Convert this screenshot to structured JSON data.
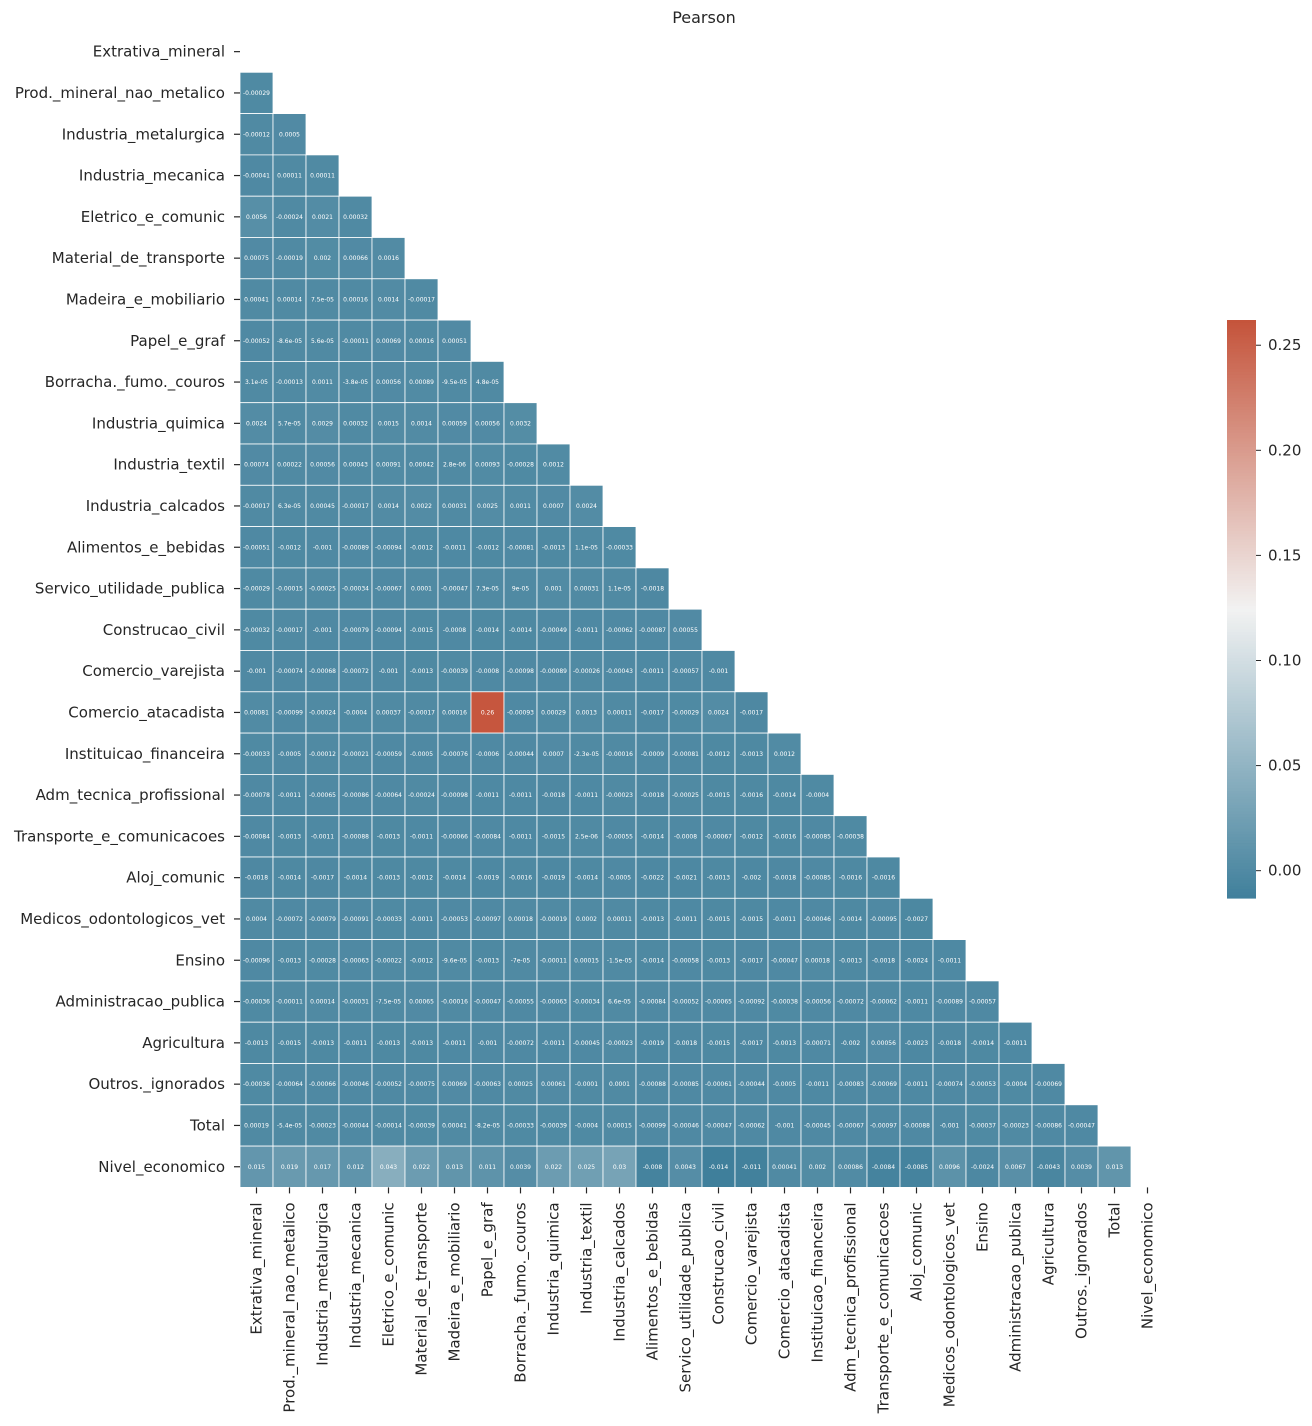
{
  "chart_data": {
    "type": "heatmap",
    "title": "Pearson",
    "xlabel": "",
    "ylabel": "",
    "variables": [
      "Extrativa_mineral",
      "Prod._mineral_nao_metalico",
      "Industria_metalurgica",
      "Industria_mecanica",
      "Eletrico_e_comunic",
      "Material_de_transporte",
      "Madeira_e_mobiliario",
      "Papel_e_graf",
      "Borracha._fumo._couros",
      "Industria_quimica",
      "Industria_textil",
      "Industria_calcados",
      "Alimentos_e_bebidas",
      "Servico_utilidade_publica",
      "Construcao_civil",
      "Comercio_varejista",
      "Comercio_atacadista",
      "Instituicao_financeira",
      "Adm_tecnica_profissional",
      "Transporte_e_comunicacoes",
      "Aloj_comunic",
      "Medicos_odontologicos_vet",
      "Ensino",
      "Administracao_publica",
      "Agricultura",
      "Outros._ignorados",
      "Total",
      "Nivel_economico"
    ],
    "mask": "upper triangle including diagonal",
    "cell_labels": [
      [],
      [
        "-0.00029"
      ],
      [
        "-0.00012",
        "0.0005"
      ],
      [
        "-0.00041",
        "0.00011",
        "0.00011"
      ],
      [
        "0.0056",
        "-0.00024",
        "0.0021",
        "0.00032"
      ],
      [
        "0.00075",
        "-0.00019",
        "0.002",
        "0.00066",
        "0.0016"
      ],
      [
        "0.00041",
        "0.00014",
        "7.5e-05",
        "0.00016",
        "0.0014",
        "-0.00017"
      ],
      [
        "-0.00052",
        "-8.6e-05",
        "5.6e-05",
        "-0.00011",
        "0.00069",
        "0.00016",
        "0.00051"
      ],
      [
        "3.1e-05",
        "-0.00013",
        "0.0011",
        "-3.8e-05",
        "0.00056",
        "0.00089",
        "-9.5e-05",
        "4.8e-05"
      ],
      [
        "0.0024",
        "5.7e-05",
        "0.0029",
        "0.00032",
        "0.0015",
        "0.0014",
        "0.00059",
        "0.00056",
        "0.0032"
      ],
      [
        "0.00074",
        "0.00022",
        "0.00056",
        "0.00043",
        "0.00091",
        "0.00042",
        "2.8e-06",
        "0.00093",
        "-0.00028",
        "0.0012"
      ],
      [
        "-0.00017",
        "6.3e-05",
        "0.00045",
        "-0.00017",
        "0.0014",
        "0.0022",
        "0.00031",
        "0.0025",
        "0.0011",
        "0.0007",
        "0.0024"
      ],
      [
        "-0.00051",
        "-0.0012",
        "-0.001",
        "-0.00089",
        "-0.00094",
        "-0.0012",
        "-0.0011",
        "-0.0012",
        "-0.00081",
        "-0.0013",
        "1.1e-05",
        "-0.00033"
      ],
      [
        "-0.00029",
        "-0.00015",
        "-0.00025",
        "-0.00034",
        "-0.00067",
        "0.0001",
        "-0.00047",
        "7.3e-05",
        "9e-05",
        "0.001",
        "0.00031",
        "1.1e-05",
        "-0.0018"
      ],
      [
        "-0.00032",
        "-0.00017",
        "-0.001",
        "-0.00079",
        "-0.00094",
        "-0.0015",
        "-0.0008",
        "-0.0014",
        "-0.0014",
        "-0.00049",
        "-0.0011",
        "-0.00062",
        "-0.00087",
        "0.00055"
      ],
      [
        "-0.001",
        "-0.00074",
        "-0.00068",
        "-0.00072",
        "-0.001",
        "-0.0013",
        "-0.00039",
        "-0.0008",
        "-0.00098",
        "-0.00089",
        "-0.00026",
        "-0.00043",
        "-0.0011",
        "-0.00057",
        "-0.001"
      ],
      [
        "0.00081",
        "-0.00099",
        "-0.00024",
        "-0.0004",
        "0.00037",
        "-0.00017",
        "0.00016",
        "0.26",
        "-0.00093",
        "0.00029",
        "0.0013",
        "0.00011",
        "-0.0017",
        "-0.00029",
        "0.0024",
        "-0.0017"
      ],
      [
        "-0.00033",
        "-0.0005",
        "-0.00012",
        "-0.00021",
        "-0.00059",
        "-0.0005",
        "-0.00076",
        "-0.0006",
        "-0.00044",
        "0.0007",
        "-2.3e-05",
        "-0.00016",
        "-0.0009",
        "-0.00081",
        "-0.0012",
        "-0.0013",
        "0.0012"
      ],
      [
        "-0.00078",
        "-0.0011",
        "-0.00065",
        "-0.00086",
        "-0.00064",
        "-0.00024",
        "-0.00098",
        "-0.0011",
        "-0.0011",
        "-0.0018",
        "-0.0011",
        "-0.00023",
        "-0.0018",
        "-0.00025",
        "-0.0015",
        "-0.0016",
        "-0.0014",
        "-0.0004"
      ],
      [
        "-0.00084",
        "-0.0013",
        "-0.0011",
        "-0.00088",
        "-0.0013",
        "-0.0011",
        "-0.00066",
        "-0.00084",
        "-0.0011",
        "-0.0015",
        "2.5e-06",
        "-0.00055",
        "-0.0014",
        "-0.0008",
        "-0.00067",
        "-0.0012",
        "-0.0016",
        "-0.00085",
        "-0.00038"
      ],
      [
        "-0.0018",
        "-0.0014",
        "-0.0017",
        "-0.0014",
        "-0.0013",
        "-0.0012",
        "-0.0014",
        "-0.0019",
        "-0.0016",
        "-0.0019",
        "-0.0014",
        "-0.0005",
        "-0.0022",
        "-0.0021",
        "-0.0013",
        "-0.002",
        "-0.0018",
        "-0.00085",
        "-0.0016",
        "-0.0016"
      ],
      [
        "0.0004",
        "-0.00072",
        "-0.00079",
        "-0.00091",
        "-0.00033",
        "-0.0011",
        "-0.00053",
        "-0.00097",
        "0.00018",
        "-0.00019",
        "0.0002",
        "0.00011",
        "-0.0013",
        "-0.0011",
        "-0.0015",
        "-0.0015",
        "-0.0011",
        "-0.00046",
        "-0.0014",
        "-0.00095",
        "-0.0027"
      ],
      [
        "-0.00096",
        "-0.0013",
        "-0.00028",
        "-0.00063",
        "-0.00022",
        "-0.0012",
        "-9.6e-05",
        "-0.0013",
        "-7e-05",
        "-0.00011",
        "0.00015",
        "-1.5e-05",
        "-0.0014",
        "-0.00058",
        "-0.0013",
        "-0.0017",
        "-0.00047",
        "0.00018",
        "-0.0013",
        "-0.0018",
        "-0.0024",
        "-0.0011"
      ],
      [
        "-0.00036",
        "-0.00011",
        "0.00014",
        "-0.00031",
        "-7.5e-05",
        "0.00065",
        "-0.00016",
        "-0.00047",
        "-0.00055",
        "-0.00063",
        "-0.00034",
        "6.6e-05",
        "-0.00084",
        "-0.00052",
        "-0.00065",
        "-0.00092",
        "-0.00038",
        "-0.00056",
        "-0.00072",
        "-0.00062",
        "-0.0011",
        "-0.00089",
        "-0.00057"
      ],
      [
        "-0.0013",
        "-0.0015",
        "-0.0013",
        "-0.0011",
        "-0.0013",
        "-0.0013",
        "-0.0011",
        "-0.001",
        "-0.00072",
        "-0.0011",
        "-0.00045",
        "-0.00023",
        "-0.0019",
        "-0.0018",
        "-0.0015",
        "-0.0017",
        "-0.0013",
        "-0.00071",
        "-0.002",
        "0.00056",
        "-0.0023",
        "-0.0018",
        "-0.0014",
        "-0.0011"
      ],
      [
        "-0.00036",
        "-0.00064",
        "-0.00066",
        "-0.00046",
        "-0.00052",
        "-0.00075",
        "0.00069",
        "-0.00063",
        "0.00025",
        "0.00061",
        "-0.0001",
        "0.0001",
        "-0.00088",
        "-0.00085",
        "-0.00061",
        "-0.00044",
        "-0.0005",
        "-0.0011",
        "-0.00083",
        "-0.00069",
        "-0.0011",
        "-0.00074",
        "-0.00053",
        "-0.0004",
        "-0.00069"
      ],
      [
        "0.00019",
        "-5.4e-05",
        "-0.00023",
        "-0.00044",
        "-0.00014",
        "-0.00039",
        "0.00041",
        "-8.2e-05",
        "-0.00033",
        "-0.00039",
        "-0.0004",
        "0.00015",
        "-0.00099",
        "-0.00046",
        "-0.00047",
        "-0.00062",
        "-0.001",
        "-0.00045",
        "-0.00067",
        "-0.00097",
        "-0.00088",
        "-0.001",
        "-0.00037",
        "-0.00023",
        "-0.00086",
        "-0.00047"
      ],
      [
        "0.015",
        "0.019",
        "0.017",
        "0.012",
        "0.043",
        "0.022",
        "0.013",
        "0.011",
        "0.0039",
        "0.022",
        "0.025",
        "0.03",
        "-0.008",
        "0.0043",
        "-0.014",
        "-0.011",
        "0.00041",
        "0.002",
        "0.00086",
        "-0.0084",
        "-0.0085",
        "0.0096",
        "-0.0024",
        "0.0067",
        "-0.0043",
        "0.0039",
        "0.013"
      ]
    ],
    "color_scale": {
      "min": -0.013,
      "center": 0.125,
      "max": 0.262,
      "low_color": "#3f7f9b",
      "mid_color": "#f2f2f2",
      "high_color": "#c5543b",
      "ticks": [
        "0.00",
        "0.05",
        "0.10",
        "0.15",
        "0.20",
        "0.25"
      ],
      "tick_values": [
        0,
        0.05,
        0.1,
        0.15,
        0.2,
        0.25
      ]
    },
    "grid_color": "#ffffff"
  }
}
